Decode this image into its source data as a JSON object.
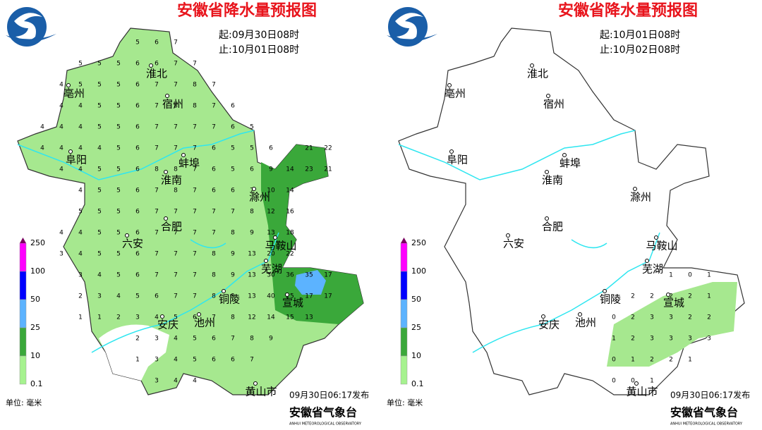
{
  "title": "安徽省降水量预报图",
  "legend": {
    "ticks": [
      250,
      100,
      50,
      25,
      10,
      0.1
    ],
    "colors": [
      "#ff00ff",
      "#0000ff",
      "#5cb3ff",
      "#3aa83a",
      "#a6f28f"
    ],
    "unit": "单位: 毫米"
  },
  "agency": "安徽省气象台",
  "agency_en": "ANHUI METEOROLOGICAL OBSERVATORY",
  "cities": [
    "淮北",
    "亳州",
    "宿州",
    "阜阳",
    "蚌埠",
    "淮南",
    "滁州",
    "六安",
    "合肥",
    "马鞍山",
    "芜湖",
    "铜陵",
    "宣城",
    "安庆",
    "池州",
    "黄山市"
  ],
  "panels": [
    {
      "start": "起:09月30日08时",
      "end": "止:10月01日08时",
      "issued": "09月30日06:17发布",
      "grid": [
        [
          null,
          null,
          null,
          null,
          null,
          5,
          6,
          7,
          null,
          null,
          null,
          null,
          null,
          null,
          null,
          null
        ],
        [
          null,
          null,
          5,
          5,
          5,
          6,
          6,
          7,
          7,
          null,
          null,
          null,
          null,
          null,
          null,
          null
        ],
        [
          null,
          4,
          5,
          5,
          5,
          6,
          7,
          7,
          8,
          7,
          null,
          null,
          null,
          null,
          null,
          null
        ],
        [
          null,
          4,
          4,
          5,
          5,
          6,
          7,
          8,
          8,
          7,
          6,
          null,
          null,
          null,
          null,
          null
        ],
        [
          4,
          4,
          4,
          5,
          5,
          6,
          7,
          7,
          7,
          7,
          6,
          5,
          null,
          null,
          null,
          null
        ],
        [
          4,
          4,
          4,
          4,
          5,
          6,
          7,
          7,
          7,
          6,
          5,
          5,
          6,
          null,
          21,
          22
        ],
        [
          null,
          4,
          4,
          5,
          5,
          6,
          8,
          8,
          7,
          6,
          5,
          6,
          9,
          14,
          23,
          21
        ],
        [
          null,
          null,
          4,
          5,
          5,
          6,
          7,
          8,
          7,
          6,
          6,
          7,
          10,
          14,
          null,
          null
        ],
        [
          null,
          null,
          5,
          5,
          5,
          6,
          7,
          7,
          7,
          7,
          7,
          8,
          12,
          16,
          null,
          null
        ],
        [
          null,
          4,
          4,
          5,
          5,
          6,
          7,
          7,
          7,
          7,
          8,
          9,
          13,
          18,
          null,
          null
        ],
        [
          null,
          3,
          4,
          5,
          5,
          6,
          7,
          7,
          7,
          8,
          9,
          13,
          20,
          22,
          null,
          null
        ],
        [
          null,
          null,
          3,
          4,
          5,
          6,
          7,
          7,
          7,
          8,
          9,
          13,
          30,
          36,
          35,
          17
        ],
        [
          null,
          null,
          2,
          3,
          4,
          5,
          6,
          7,
          7,
          8,
          9,
          13,
          40,
          25,
          17,
          17
        ],
        [
          null,
          null,
          1,
          1,
          2,
          3,
          4,
          5,
          6,
          7,
          8,
          12,
          14,
          15,
          13,
          null
        ],
        [
          null,
          null,
          null,
          null,
          null,
          2,
          3,
          4,
          5,
          6,
          7,
          8,
          9,
          null,
          null,
          null
        ],
        [
          null,
          null,
          null,
          null,
          null,
          1,
          3,
          4,
          5,
          6,
          6,
          7,
          null,
          null,
          null,
          null
        ],
        [
          null,
          null,
          null,
          null,
          null,
          null,
          3,
          4,
          4,
          null,
          null,
          null,
          null,
          null,
          null,
          null
        ]
      ]
    },
    {
      "start": "起:10月01日08时",
      "end": "止:10月02日08时",
      "issued": "09月30日06:17发布",
      "grid": [
        [
          null,
          null,
          null,
          null,
          null,
          null,
          null,
          null,
          null,
          null,
          null,
          null,
          null,
          null,
          null,
          null
        ],
        [
          null,
          null,
          null,
          null,
          null,
          null,
          null,
          null,
          null,
          null,
          null,
          null,
          null,
          null,
          null,
          null
        ],
        [
          null,
          null,
          null,
          null,
          null,
          null,
          null,
          null,
          null,
          null,
          null,
          null,
          null,
          null,
          null,
          null
        ],
        [
          null,
          null,
          null,
          null,
          null,
          null,
          null,
          null,
          null,
          null,
          null,
          null,
          null,
          null,
          null,
          null
        ],
        [
          null,
          null,
          null,
          null,
          null,
          null,
          null,
          null,
          null,
          null,
          null,
          null,
          null,
          null,
          null,
          null
        ],
        [
          null,
          null,
          null,
          null,
          null,
          null,
          null,
          null,
          null,
          null,
          null,
          null,
          null,
          null,
          null,
          null
        ],
        [
          null,
          null,
          null,
          null,
          null,
          null,
          null,
          null,
          null,
          null,
          null,
          null,
          null,
          null,
          null,
          null
        ],
        [
          null,
          null,
          null,
          null,
          null,
          null,
          null,
          null,
          null,
          null,
          null,
          null,
          null,
          null,
          null,
          null
        ],
        [
          null,
          null,
          null,
          null,
          null,
          null,
          null,
          null,
          null,
          null,
          null,
          null,
          null,
          null,
          null,
          null
        ],
        [
          null,
          null,
          null,
          null,
          null,
          null,
          null,
          null,
          null,
          null,
          null,
          null,
          null,
          null,
          null,
          null
        ],
        [
          null,
          null,
          null,
          null,
          null,
          null,
          null,
          null,
          null,
          null,
          null,
          null,
          null,
          null,
          null,
          null
        ],
        [
          null,
          null,
          null,
          null,
          null,
          null,
          null,
          null,
          null,
          null,
          null,
          null,
          null,
          1,
          0,
          1
        ],
        [
          null,
          null,
          null,
          null,
          null,
          null,
          null,
          null,
          null,
          null,
          null,
          2,
          2,
          2,
          2,
          1
        ],
        [
          null,
          null,
          null,
          null,
          null,
          null,
          null,
          null,
          null,
          null,
          0,
          2,
          3,
          3,
          2,
          2
        ],
        [
          null,
          null,
          null,
          null,
          null,
          null,
          null,
          null,
          null,
          null,
          1,
          2,
          3,
          3,
          3,
          3
        ],
        [
          null,
          null,
          null,
          null,
          null,
          null,
          null,
          null,
          null,
          null,
          0,
          1,
          2,
          2,
          1,
          null
        ],
        [
          null,
          null,
          null,
          null,
          null,
          null,
          null,
          null,
          null,
          null,
          0,
          0,
          1,
          null,
          null,
          null
        ]
      ]
    }
  ]
}
